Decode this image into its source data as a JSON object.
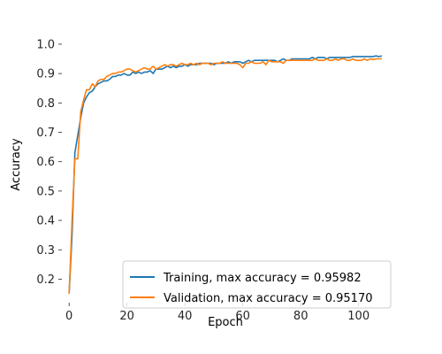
{
  "chart_data": {
    "type": "line",
    "xlabel": "Epoch",
    "ylabel": "Accuracy",
    "xlim": [
      -2.5,
      112
    ],
    "ylim": [
      0.12,
      1.06
    ],
    "xticks": [
      0,
      20,
      40,
      60,
      80,
      100
    ],
    "yticks": [
      0.2,
      0.3,
      0.4,
      0.5,
      0.6,
      0.7,
      0.8,
      0.9,
      1.0
    ],
    "ytick_labels": [
      "0.2",
      "0.3",
      "0.4",
      "0.5",
      "0.6",
      "0.7",
      "0.8",
      "0.9",
      "1.0"
    ],
    "grid": false,
    "legend_position": "bottom-right",
    "series": [
      {
        "name": "Training, max accuracy = 0.95982",
        "color": "#1f77b4",
        "points": [
          [
            0,
            0.15
          ],
          [
            1,
            0.35
          ],
          [
            2,
            0.63
          ],
          [
            3,
            0.69
          ],
          [
            4,
            0.75
          ],
          [
            5,
            0.8
          ],
          [
            6,
            0.82
          ],
          [
            7,
            0.835
          ],
          [
            8,
            0.84
          ],
          [
            9,
            0.855
          ],
          [
            10,
            0.865
          ],
          [
            11,
            0.87
          ],
          [
            12,
            0.875
          ],
          [
            13,
            0.875
          ],
          [
            14,
            0.88
          ],
          [
            15,
            0.89
          ],
          [
            16,
            0.89
          ],
          [
            17,
            0.895
          ],
          [
            18,
            0.895
          ],
          [
            19,
            0.9
          ],
          [
            20,
            0.895
          ],
          [
            21,
            0.895
          ],
          [
            22,
            0.905
          ],
          [
            23,
            0.9
          ],
          [
            24,
            0.905
          ],
          [
            25,
            0.9
          ],
          [
            26,
            0.905
          ],
          [
            27,
            0.905
          ],
          [
            28,
            0.91
          ],
          [
            29,
            0.9
          ],
          [
            30,
            0.915
          ],
          [
            31,
            0.915
          ],
          [
            32,
            0.915
          ],
          [
            33,
            0.92
          ],
          [
            34,
            0.925
          ],
          [
            35,
            0.92
          ],
          [
            36,
            0.925
          ],
          [
            37,
            0.92
          ],
          [
            38,
            0.925
          ],
          [
            39,
            0.925
          ],
          [
            40,
            0.93
          ],
          [
            41,
            0.925
          ],
          [
            42,
            0.93
          ],
          [
            43,
            0.93
          ],
          [
            44,
            0.93
          ],
          [
            45,
            0.935
          ],
          [
            46,
            0.935
          ],
          [
            47,
            0.935
          ],
          [
            48,
            0.935
          ],
          [
            49,
            0.935
          ],
          [
            50,
            0.93
          ],
          [
            51,
            0.935
          ],
          [
            52,
            0.935
          ],
          [
            53,
            0.935
          ],
          [
            54,
            0.935
          ],
          [
            55,
            0.94
          ],
          [
            56,
            0.935
          ],
          [
            57,
            0.94
          ],
          [
            58,
            0.94
          ],
          [
            59,
            0.94
          ],
          [
            60,
            0.935
          ],
          [
            61,
            0.94
          ],
          [
            62,
            0.945
          ],
          [
            63,
            0.94
          ],
          [
            64,
            0.945
          ],
          [
            65,
            0.945
          ],
          [
            66,
            0.945
          ],
          [
            67,
            0.945
          ],
          [
            68,
            0.945
          ],
          [
            69,
            0.945
          ],
          [
            70,
            0.945
          ],
          [
            71,
            0.945
          ],
          [
            72,
            0.94
          ],
          [
            73,
            0.945
          ],
          [
            74,
            0.95
          ],
          [
            75,
            0.945
          ],
          [
            76,
            0.945
          ],
          [
            77,
            0.95
          ],
          [
            78,
            0.95
          ],
          [
            79,
            0.95
          ],
          [
            80,
            0.95
          ],
          [
            81,
            0.95
          ],
          [
            82,
            0.95
          ],
          [
            83,
            0.95
          ],
          [
            84,
            0.955
          ],
          [
            85,
            0.95
          ],
          [
            86,
            0.955
          ],
          [
            87,
            0.955
          ],
          [
            88,
            0.955
          ],
          [
            89,
            0.95
          ],
          [
            90,
            0.955
          ],
          [
            91,
            0.955
          ],
          [
            92,
            0.955
          ],
          [
            93,
            0.955
          ],
          [
            94,
            0.955
          ],
          [
            95,
            0.955
          ],
          [
            96,
            0.955
          ],
          [
            97,
            0.955
          ],
          [
            98,
            0.958
          ],
          [
            99,
            0.958
          ],
          [
            100,
            0.958
          ],
          [
            101,
            0.958
          ],
          [
            102,
            0.958
          ],
          [
            103,
            0.958
          ],
          [
            104,
            0.958
          ],
          [
            105,
            0.958
          ],
          [
            106,
            0.96
          ],
          [
            107,
            0.958
          ],
          [
            108,
            0.96
          ]
        ]
      },
      {
        "name": "Validation, max accuracy = 0.95170",
        "color": "#ff7f0e",
        "points": [
          [
            0,
            0.15
          ],
          [
            1,
            0.4
          ],
          [
            2,
            0.61
          ],
          [
            3,
            0.61
          ],
          [
            4,
            0.77
          ],
          [
            5,
            0.81
          ],
          [
            6,
            0.845
          ],
          [
            7,
            0.845
          ],
          [
            8,
            0.865
          ],
          [
            9,
            0.855
          ],
          [
            10,
            0.875
          ],
          [
            11,
            0.88
          ],
          [
            12,
            0.88
          ],
          [
            13,
            0.89
          ],
          [
            14,
            0.895
          ],
          [
            15,
            0.9
          ],
          [
            16,
            0.9
          ],
          [
            17,
            0.905
          ],
          [
            18,
            0.905
          ],
          [
            19,
            0.91
          ],
          [
            20,
            0.915
          ],
          [
            21,
            0.915
          ],
          [
            22,
            0.91
          ],
          [
            23,
            0.905
          ],
          [
            24,
            0.91
          ],
          [
            25,
            0.915
          ],
          [
            26,
            0.92
          ],
          [
            27,
            0.915
          ],
          [
            28,
            0.915
          ],
          [
            29,
            0.925
          ],
          [
            30,
            0.915
          ],
          [
            31,
            0.92
          ],
          [
            32,
            0.925
          ],
          [
            33,
            0.93
          ],
          [
            34,
            0.925
          ],
          [
            35,
            0.93
          ],
          [
            36,
            0.93
          ],
          [
            37,
            0.925
          ],
          [
            38,
            0.93
          ],
          [
            39,
            0.935
          ],
          [
            40,
            0.93
          ],
          [
            41,
            0.93
          ],
          [
            42,
            0.935
          ],
          [
            43,
            0.93
          ],
          [
            44,
            0.935
          ],
          [
            45,
            0.93
          ],
          [
            46,
            0.935
          ],
          [
            47,
            0.935
          ],
          [
            48,
            0.935
          ],
          [
            49,
            0.93
          ],
          [
            50,
            0.935
          ],
          [
            51,
            0.935
          ],
          [
            52,
            0.935
          ],
          [
            53,
            0.94
          ],
          [
            54,
            0.935
          ],
          [
            55,
            0.935
          ],
          [
            56,
            0.935
          ],
          [
            57,
            0.935
          ],
          [
            58,
            0.935
          ],
          [
            59,
            0.93
          ],
          [
            60,
            0.92
          ],
          [
            61,
            0.935
          ],
          [
            62,
            0.935
          ],
          [
            63,
            0.94
          ],
          [
            64,
            0.935
          ],
          [
            65,
            0.935
          ],
          [
            66,
            0.935
          ],
          [
            67,
            0.94
          ],
          [
            68,
            0.93
          ],
          [
            69,
            0.945
          ],
          [
            70,
            0.94
          ],
          [
            71,
            0.94
          ],
          [
            72,
            0.94
          ],
          [
            73,
            0.94
          ],
          [
            74,
            0.935
          ],
          [
            75,
            0.945
          ],
          [
            76,
            0.945
          ],
          [
            77,
            0.945
          ],
          [
            78,
            0.945
          ],
          [
            79,
            0.945
          ],
          [
            80,
            0.945
          ],
          [
            81,
            0.945
          ],
          [
            82,
            0.945
          ],
          [
            83,
            0.945
          ],
          [
            84,
            0.945
          ],
          [
            85,
            0.95
          ],
          [
            86,
            0.945
          ],
          [
            87,
            0.945
          ],
          [
            88,
            0.945
          ],
          [
            89,
            0.95
          ],
          [
            90,
            0.945
          ],
          [
            91,
            0.945
          ],
          [
            92,
            0.95
          ],
          [
            93,
            0.945
          ],
          [
            94,
            0.95
          ],
          [
            95,
            0.95
          ],
          [
            96,
            0.945
          ],
          [
            97,
            0.945
          ],
          [
            98,
            0.95
          ],
          [
            99,
            0.945
          ],
          [
            100,
            0.945
          ],
          [
            101,
            0.945
          ],
          [
            102,
            0.95
          ],
          [
            103,
            0.945
          ],
          [
            104,
            0.95
          ],
          [
            105,
            0.948
          ],
          [
            106,
            0.95
          ],
          [
            107,
            0.95
          ],
          [
            108,
            0.95
          ]
        ]
      }
    ]
  }
}
